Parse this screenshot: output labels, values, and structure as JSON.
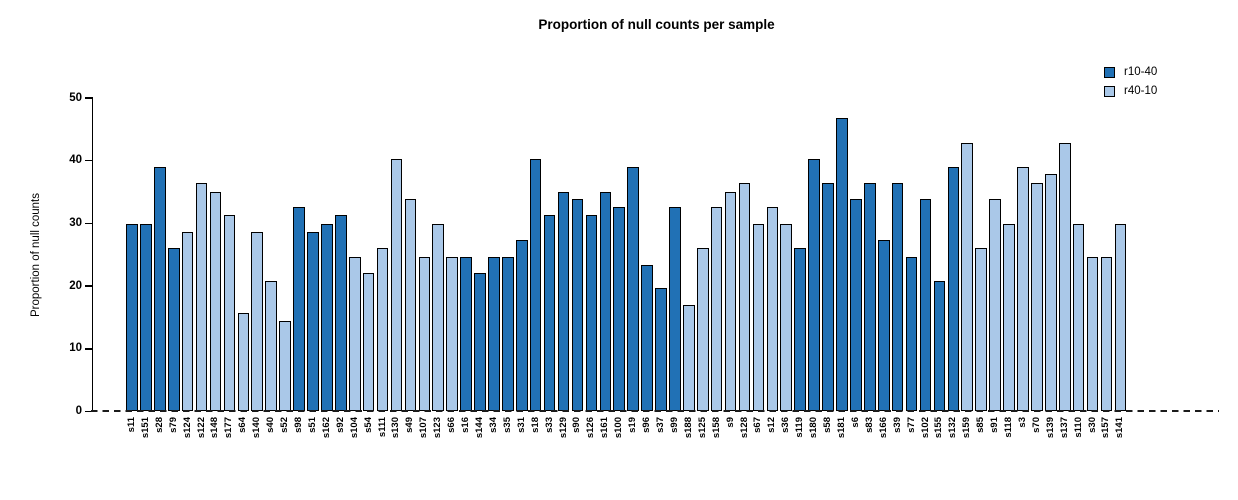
{
  "title": "Proportion of null counts per sample",
  "y_axis": {
    "label": "Proportion of null counts"
  },
  "legend": {
    "items": [
      {
        "label": "r10-40",
        "key": "r10-40"
      },
      {
        "label": "r40-10",
        "key": "r40-10"
      }
    ]
  },
  "colors": {
    "r10-40": "#2171b5",
    "r40-10": "#aac8e8",
    "bar_border": "#000000",
    "axis": "#000000"
  },
  "chart_data": {
    "type": "bar",
    "title": "Proportion of null counts per sample",
    "xlabel": "",
    "ylabel": "Proportion of null counts",
    "ylim": [
      0,
      50
    ],
    "yticks": [
      0,
      10,
      20,
      30,
      40,
      50
    ],
    "grid": false,
    "legend_position": "top-right",
    "zero_line_style": "dashed",
    "series_names": [
      "r10-40",
      "r40-10"
    ],
    "categories": [
      "s11",
      "s151",
      "s28",
      "s79",
      "s124",
      "s122",
      "s148",
      "s177",
      "s64",
      "s140",
      "s40",
      "s52",
      "s98",
      "s51",
      "s162",
      "s92",
      "s104",
      "s54",
      "s111",
      "s130",
      "s49",
      "s107",
      "s123",
      "s66",
      "s16",
      "s144",
      "s34",
      "s35",
      "s31",
      "s18",
      "s33",
      "s129",
      "s90",
      "s126",
      "s161",
      "s100",
      "s19",
      "s96",
      "s37",
      "s99",
      "s188",
      "s125",
      "s158",
      "s9",
      "s128",
      "s67",
      "s12",
      "s36",
      "s119",
      "s180",
      "s58",
      "s181",
      "s6",
      "s83",
      "s166",
      "s39",
      "s77",
      "s102",
      "s155",
      "s132",
      "s159",
      "s85",
      "s91",
      "s118",
      "s3",
      "s70",
      "s139",
      "s137",
      "s110",
      "s30",
      "s157",
      "s141"
    ],
    "values": [
      29.8,
      29.8,
      39.0,
      26.0,
      28.6,
      36.4,
      35.0,
      31.3,
      15.6,
      28.6,
      20.8,
      14.3,
      32.6,
      28.6,
      29.8,
      31.3,
      24.6,
      22.1,
      26.0,
      40.2,
      33.8,
      24.6,
      29.8,
      24.6,
      24.6,
      22.1,
      24.6,
      24.6,
      27.3,
      40.2,
      31.3,
      35.0,
      33.8,
      31.3,
      35.0,
      32.6,
      39.0,
      23.3,
      19.6,
      32.6,
      16.9,
      26.0,
      32.6,
      35.0,
      36.4,
      29.8,
      32.6,
      29.8,
      26.0,
      40.2,
      36.4,
      46.8,
      33.8,
      36.4,
      27.3,
      36.4,
      24.6,
      33.8,
      20.8,
      39.0,
      42.8,
      26.0,
      33.8,
      29.9,
      39.0,
      36.4,
      37.8,
      42.8,
      29.9,
      24.6,
      24.6,
      29.9
    ],
    "groups": [
      "r10-40",
      "r10-40",
      "r10-40",
      "r10-40",
      "r40-10",
      "r40-10",
      "r40-10",
      "r40-10",
      "r40-10",
      "r40-10",
      "r40-10",
      "r40-10",
      "r10-40",
      "r10-40",
      "r10-40",
      "r10-40",
      "r40-10",
      "r40-10",
      "r40-10",
      "r40-10",
      "r40-10",
      "r40-10",
      "r40-10",
      "r40-10",
      "r10-40",
      "r10-40",
      "r10-40",
      "r10-40",
      "r10-40",
      "r10-40",
      "r10-40",
      "r10-40",
      "r10-40",
      "r10-40",
      "r10-40",
      "r10-40",
      "r10-40",
      "r10-40",
      "r10-40",
      "r10-40",
      "r40-10",
      "r40-10",
      "r40-10",
      "r40-10",
      "r40-10",
      "r40-10",
      "r40-10",
      "r40-10",
      "r10-40",
      "r10-40",
      "r10-40",
      "r10-40",
      "r10-40",
      "r10-40",
      "r10-40",
      "r10-40",
      "r10-40",
      "r10-40",
      "r10-40",
      "r10-40",
      "r40-10",
      "r40-10",
      "r40-10",
      "r40-10",
      "r40-10",
      "r40-10",
      "r40-10",
      "r40-10",
      "r40-10",
      "r40-10",
      "r40-10",
      "r40-10"
    ]
  }
}
